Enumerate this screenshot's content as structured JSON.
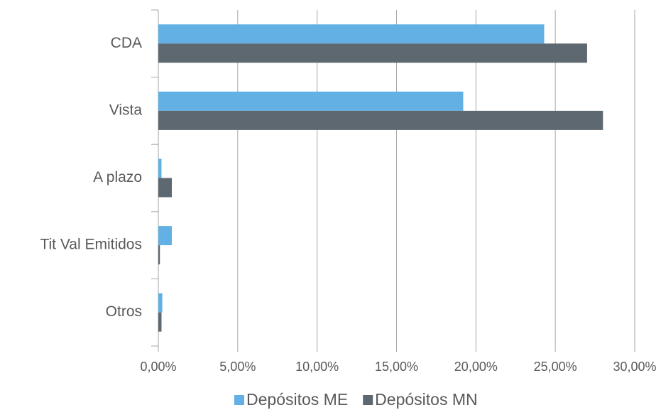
{
  "chart_data": {
    "type": "bar",
    "orientation": "horizontal",
    "categories": [
      "CDA",
      "Vista",
      "A plazo",
      "Tit Val Emitidos",
      "Otros"
    ],
    "series": [
      {
        "name": "Depósitos ME",
        "color": "#62b0e4",
        "values": [
          24.3,
          19.2,
          0.2,
          0.85,
          0.25
        ]
      },
      {
        "name": "Depósitos MN",
        "color": "#5d6870",
        "values": [
          27.0,
          28.0,
          0.85,
          0.1,
          0.2
        ]
      }
    ],
    "xlim": [
      0,
      30
    ],
    "xticks": [
      {
        "value": 0,
        "label": "0,00%"
      },
      {
        "value": 5,
        "label": "5,00%"
      },
      {
        "value": 10,
        "label": "10,00%"
      },
      {
        "value": 15,
        "label": "15,00%"
      },
      {
        "value": 20,
        "label": "20,00%"
      },
      {
        "value": 25,
        "label": "25,00%"
      },
      {
        "value": 30,
        "label": "30,00%"
      }
    ],
    "grid": true,
    "legend": "bottom"
  }
}
